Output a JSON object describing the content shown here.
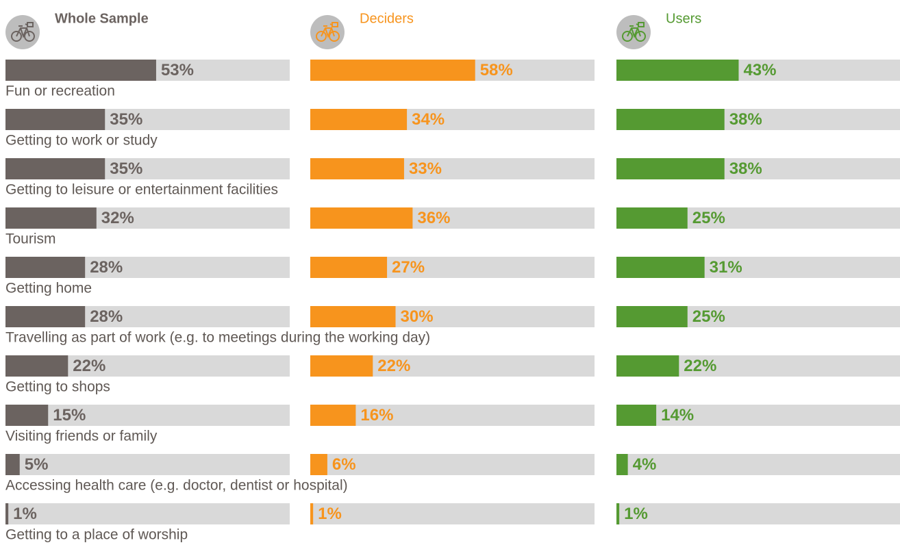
{
  "chart_data": {
    "type": "bar",
    "categories": [
      "Fun or recreation",
      "Getting to work or study",
      "Getting to leisure or entertainment facilities",
      "Tourism",
      "Getting home",
      "Travelling as part of work (e.g. to meetings during the working day)",
      "Getting to shops",
      "Visiting friends or family",
      "Accessing health care (e.g. doctor, dentist or hospital)",
      "Getting to a place of worship"
    ],
    "xlim": [
      0,
      100
    ],
    "series": [
      {
        "name": "Whole Sample",
        "color": "#6b6360",
        "values": [
          53,
          35,
          35,
          32,
          28,
          28,
          22,
          15,
          5,
          1
        ],
        "value_labels": [
          "53%",
          "35%",
          "35%",
          "32%",
          "28%",
          "28%",
          "22%",
          "15%",
          "5%",
          "1%"
        ]
      },
      {
        "name": "Deciders",
        "color": "#f7941d",
        "values": [
          58,
          34,
          33,
          36,
          27,
          30,
          22,
          16,
          6,
          1
        ],
        "value_labels": [
          "58%",
          "34%",
          "33%",
          "36%",
          "27%",
          "30%",
          "22%",
          "16%",
          "6%",
          "1%"
        ]
      },
      {
        "name": "Users",
        "color": "#559a32",
        "values": [
          43,
          38,
          38,
          25,
          31,
          25,
          22,
          14,
          4,
          1
        ],
        "value_labels": [
          "43%",
          "38%",
          "38%",
          "25%",
          "31%",
          "25%",
          "22%",
          "14%",
          "4%",
          "1%"
        ]
      }
    ]
  }
}
